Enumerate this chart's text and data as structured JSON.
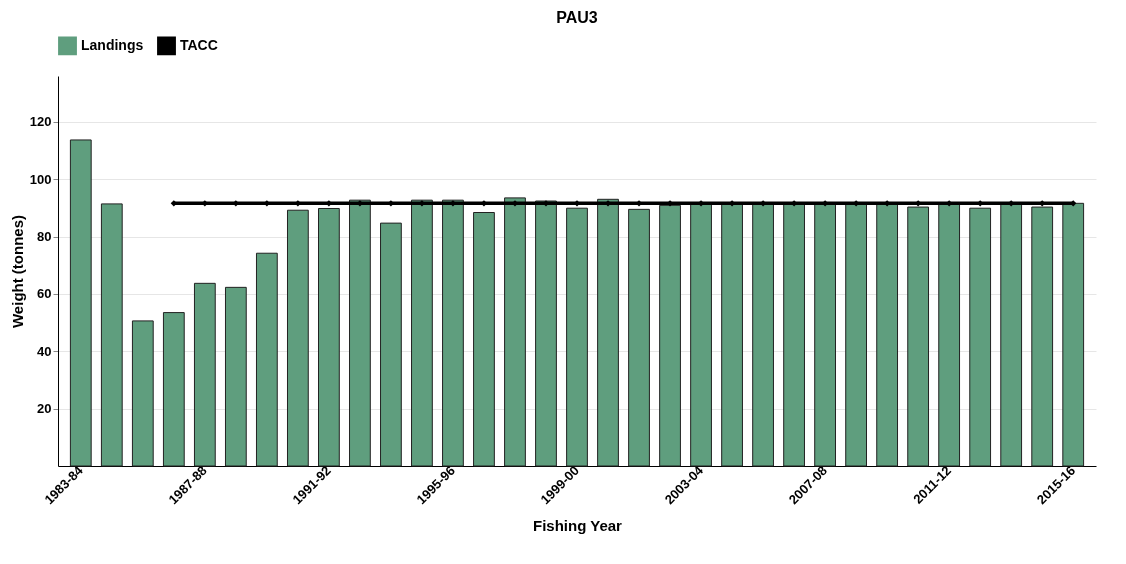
{
  "chart_data": {
    "type": "bar",
    "title": "PAU3",
    "xlabel": "Fishing Year",
    "ylabel": "Weight (tonnes)",
    "categories": [
      "1983-84",
      null,
      null,
      null,
      "1987-88",
      null,
      null,
      null,
      "1991-92",
      null,
      null,
      null,
      "1995-96",
      null,
      null,
      null,
      "1999-00",
      null,
      null,
      null,
      "2003-04",
      null,
      null,
      null,
      "2007-08",
      null,
      null,
      null,
      "2011-12",
      null,
      null,
      null,
      "2015-16"
    ],
    "series": [
      {
        "name": "Landings",
        "color": "#5f9e7e",
        "values": [
          113.7,
          91.4,
          50.6,
          53.5,
          63.7,
          62.3,
          74.2,
          89.2,
          89.8,
          92.7,
          84.7,
          92.7,
          92.7,
          88.4,
          93.5,
          92.4,
          89.9,
          93.0,
          89.5,
          90.9,
          91.6,
          91.6,
          91.6,
          91.6,
          91.6,
          91.6,
          91.6,
          90.3,
          91.2,
          89.9,
          91.2,
          90.3,
          91.6
        ]
      },
      {
        "name": "TACC",
        "type": "line",
        "color": "#000000",
        "marker": "diamond",
        "values": [
          null,
          null,
          null,
          91.6,
          91.6,
          91.6,
          91.6,
          91.6,
          91.6,
          91.6,
          91.6,
          91.6,
          91.6,
          91.6,
          91.6,
          91.6,
          91.6,
          91.6,
          91.6,
          91.6,
          91.6,
          91.6,
          91.6,
          91.6,
          91.6,
          91.6,
          91.6,
          91.6,
          91.6,
          91.6,
          91.6,
          91.6,
          91.6
        ]
      }
    ],
    "ylim": [
      0,
      136
    ],
    "yticks": [
      20,
      40,
      60,
      80,
      100,
      120
    ],
    "grid": "y",
    "legend": "top"
  }
}
